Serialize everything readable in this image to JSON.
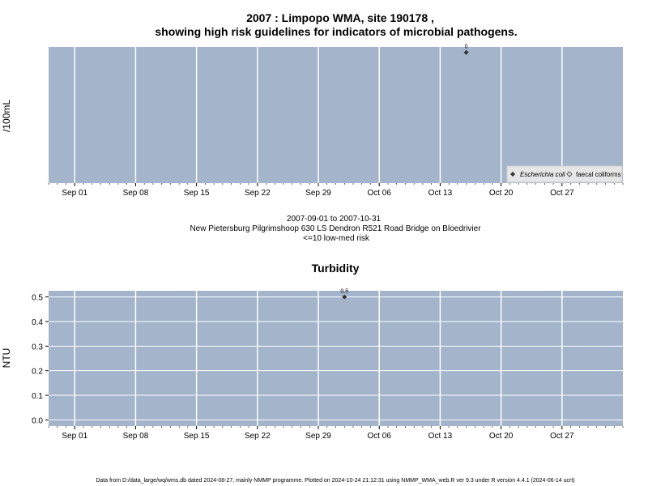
{
  "page": {
    "title_line1": "2007 : Limpopo WMA, site 190178 ,",
    "title_line2": "showing high risk guidelines for indicators of microbial pathogens.",
    "date_range": "2007-09-01 to 2007-10-31",
    "site_name": "New Pietersburg Pilgrimshoop 630 LS Dendron R521 Road Bridge on Bloedrivier",
    "risk_note": "<=10 low-med risk",
    "footer": "Data from D:/data_large/wq/wms.db dated 2024-08-27, mainly NMMP programme. Plotted on 2024-10-24 21:12:31 using NMMP_WMA_web.R ver 9.3 under R version 4.4.1 (2024-06-14 ucrt)"
  },
  "colors": {
    "panel_bg": "#a3b4cb",
    "grid": "#ffffff",
    "point": "#333333"
  },
  "chart_data": [
    {
      "type": "scatter",
      "title": "",
      "xlabel": "",
      "ylabel": "/100mL",
      "x_range": [
        "2007-08-29",
        "2007-11-03"
      ],
      "x_ticks": [
        {
          "date": "2007-09-01",
          "label": "Sep 01"
        },
        {
          "date": "2007-09-08",
          "label": "Sep 08"
        },
        {
          "date": "2007-09-15",
          "label": "Sep 15"
        },
        {
          "date": "2007-09-22",
          "label": "Sep 22"
        },
        {
          "date": "2007-09-29",
          "label": "Sep 29"
        },
        {
          "date": "2007-10-06",
          "label": "Oct 06"
        },
        {
          "date": "2007-10-13",
          "label": "Oct 13"
        },
        {
          "date": "2007-10-20",
          "label": "Oct 20"
        },
        {
          "date": "2007-10-27",
          "label": "Oct 27"
        }
      ],
      "y_ticks": [],
      "grid": true,
      "legend_position": "bottom-right",
      "legend": [
        {
          "name": "Escherichia coli",
          "marker": "filled-diamond",
          "italic": true
        },
        {
          "name": "faecal coliforms",
          "marker": "open-diamond",
          "italic": false
        }
      ],
      "series": [
        {
          "name": "Escherichia coli",
          "points": [
            {
              "x": "2007-10-16",
              "y": 0,
              "label": "0"
            }
          ]
        }
      ]
    },
    {
      "type": "scatter",
      "title": "Turbidity",
      "xlabel": "",
      "ylabel": "NTU",
      "x_range": [
        "2007-08-29",
        "2007-11-03"
      ],
      "ylim": [
        -0.025,
        0.525
      ],
      "x_ticks": [
        {
          "date": "2007-09-01",
          "label": "Sep 01"
        },
        {
          "date": "2007-09-08",
          "label": "Sep 08"
        },
        {
          "date": "2007-09-15",
          "label": "Sep 15"
        },
        {
          "date": "2007-09-22",
          "label": "Sep 22"
        },
        {
          "date": "2007-09-29",
          "label": "Sep 29"
        },
        {
          "date": "2007-10-06",
          "label": "Oct 06"
        },
        {
          "date": "2007-10-13",
          "label": "Oct 13"
        },
        {
          "date": "2007-10-20",
          "label": "Oct 20"
        },
        {
          "date": "2007-10-27",
          "label": "Oct 27"
        }
      ],
      "y_ticks": [
        {
          "value": 0.0,
          "label": "0.0"
        },
        {
          "value": 0.1,
          "label": "0.1"
        },
        {
          "value": 0.2,
          "label": "0.2"
        },
        {
          "value": 0.3,
          "label": "0.3"
        },
        {
          "value": 0.4,
          "label": "0.4"
        },
        {
          "value": 0.5,
          "label": "0.5"
        }
      ],
      "grid": true,
      "series": [
        {
          "name": "Turbidity",
          "points": [
            {
              "x": "2007-10-02",
              "y": 0.5,
              "label": "0.5"
            }
          ]
        }
      ]
    }
  ]
}
